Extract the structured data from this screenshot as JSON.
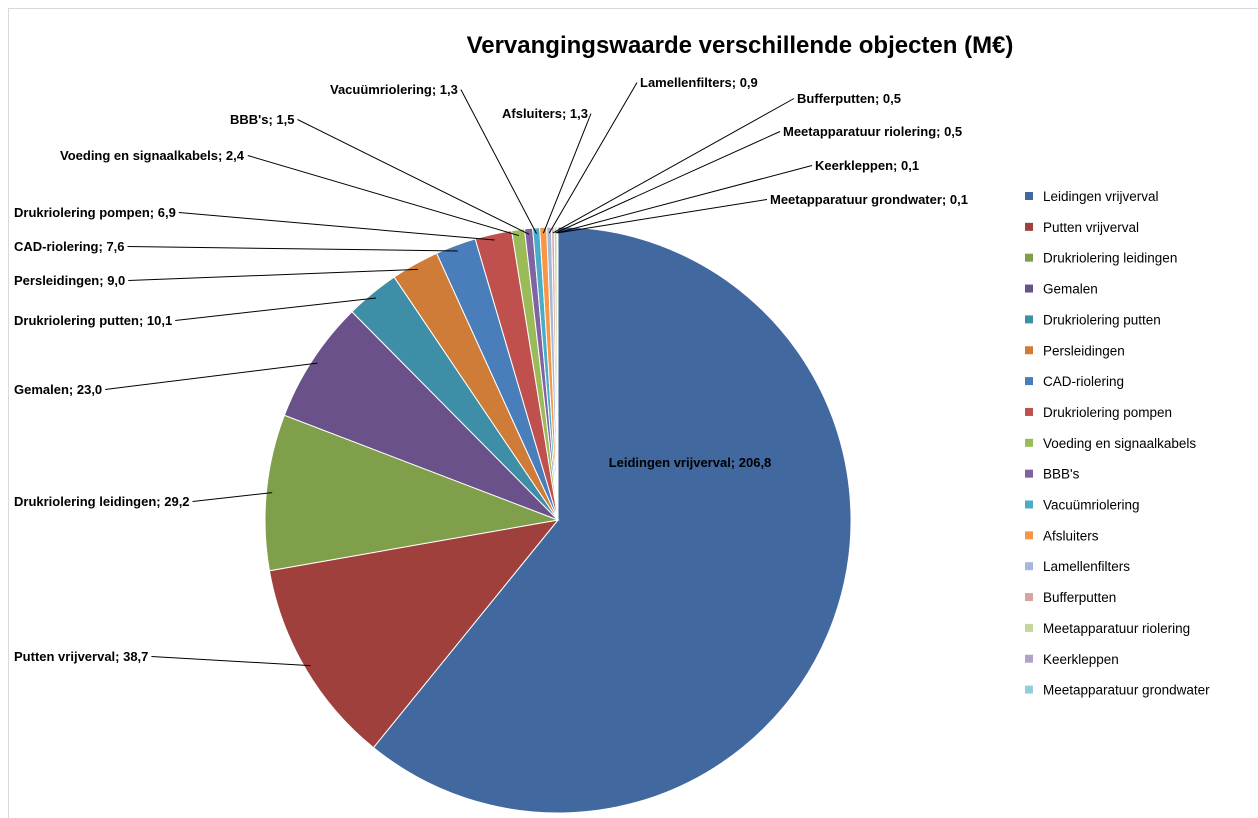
{
  "chart_data": {
    "type": "pie",
    "title": "Vervangingswaarde verschillende objecten (M€)",
    "categories": [
      "Leidingen vrijverval",
      "Putten vrijverval",
      "Drukriolering leidingen",
      "Gemalen",
      "Drukriolering putten",
      "Persleidingen",
      "CAD-riolering",
      "Drukriolering pompen",
      "Voeding en signaalkabels",
      "BBB's",
      "Vacuümriolering",
      "Afsluiters",
      "Lamellenfilters",
      "Bufferputten",
      "Meetapparatuur riolering",
      "Keerkleppen",
      "Meetapparatuur grondwater"
    ],
    "values": [
      206.8,
      38.7,
      29.2,
      23.0,
      10.1,
      9.0,
      7.6,
      6.9,
      2.4,
      1.5,
      1.3,
      1.3,
      0.9,
      0.5,
      0.5,
      0.1,
      0.1
    ],
    "value_labels": [
      "Leidingen vrijverval; 206,8",
      "Putten vrijverval; 38,7",
      "Drukriolering leidingen; 29,2",
      "Gemalen; 23,0",
      "Drukriolering putten; 10,1",
      "Persleidingen; 9,0",
      "CAD-riolering; 7,6",
      "Drukriolering pompen; 6,9",
      "Voeding en signaalkabels; 2,4",
      "BBB's; 1,5",
      "Vacuümriolering; 1,3",
      "Afsluiters; 1,3",
      "Lamellenfilters; 0,9",
      "Bufferputten; 0,5",
      "Meetapparatuur riolering; 0,5",
      "Keerkleppen; 0,1",
      "Meetapparatuur grondwater; 0,1"
    ],
    "colors": [
      "#41689f",
      "#a0403d",
      "#809f4a",
      "#6a5189",
      "#3d8ea6",
      "#cf7c39",
      "#4a7ebb",
      "#c0504d",
      "#9bbb59",
      "#8064a2",
      "#4bacc6",
      "#f79646",
      "#a5b8d8",
      "#d9a3a2",
      "#c3d69b",
      "#b3a2c7",
      "#93cddd"
    ],
    "legend": "right"
  }
}
